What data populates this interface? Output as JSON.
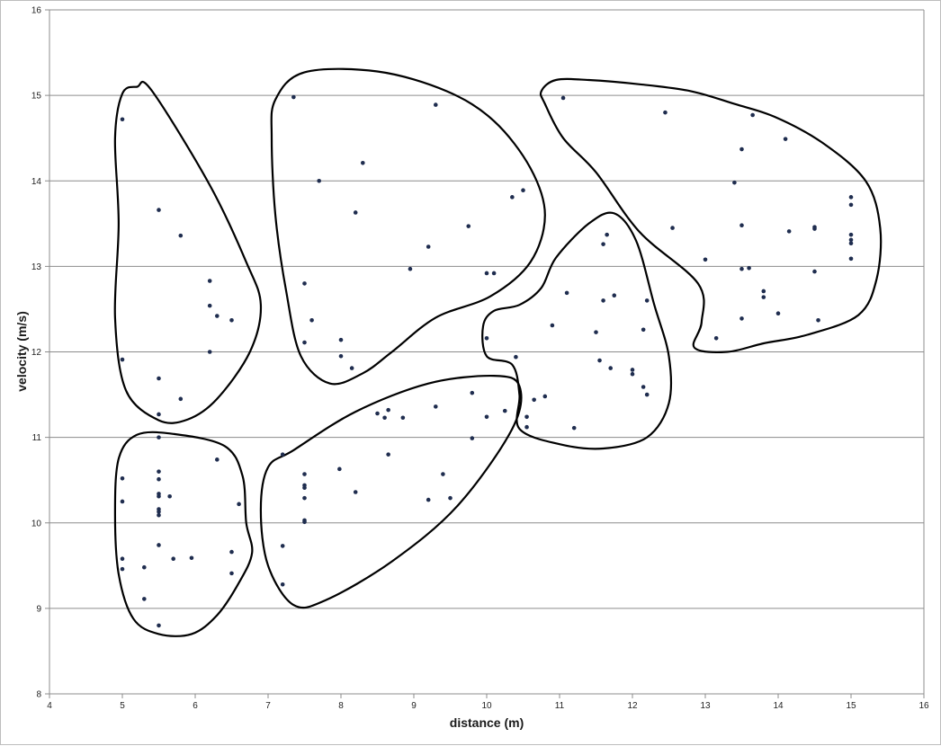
{
  "chart_data": {
    "type": "scatter",
    "title": "",
    "xlabel": "distance (m)",
    "ylabel": "velocity (m/s)",
    "xlim": [
      4,
      16
    ],
    "ylim": [
      8,
      16
    ],
    "xticks": [
      4,
      5,
      6,
      7,
      8,
      9,
      10,
      11,
      12,
      13,
      14,
      15,
      16
    ],
    "yticks": [
      8,
      9,
      10,
      11,
      12,
      13,
      14,
      15,
      16
    ],
    "grid": "horizontal",
    "point_color": "#1f2d4f",
    "series": [
      {
        "points": [
          [
            5.0,
            14.72
          ],
          [
            5.5,
            13.66
          ],
          [
            5.8,
            13.36
          ],
          [
            6.2,
            12.83
          ],
          [
            6.2,
            12.54
          ],
          [
            6.3,
            12.42
          ],
          [
            6.5,
            12.37
          ],
          [
            6.2,
            12.0
          ],
          [
            5.0,
            11.91
          ],
          [
            5.5,
            11.69
          ],
          [
            5.8,
            11.45
          ],
          [
            5.5,
            11.27
          ],
          [
            5.5,
            11.0
          ],
          [
            6.3,
            10.74
          ],
          [
            5.0,
            10.52
          ],
          [
            5.5,
            10.6
          ],
          [
            5.5,
            10.51
          ],
          [
            5.5,
            10.34
          ],
          [
            5.5,
            10.31
          ],
          [
            5.65,
            10.31
          ],
          [
            5.0,
            10.25
          ],
          [
            6.6,
            10.22
          ],
          [
            5.5,
            10.16
          ],
          [
            5.5,
            10.13
          ],
          [
            5.5,
            10.09
          ],
          [
            5.5,
            9.74
          ],
          [
            6.5,
            9.66
          ],
          [
            5.0,
            9.58
          ],
          [
            5.7,
            9.58
          ],
          [
            5.95,
            9.59
          ],
          [
            5.3,
            9.48
          ],
          [
            5.0,
            9.46
          ],
          [
            6.5,
            9.41
          ],
          [
            5.3,
            9.11
          ],
          [
            5.5,
            8.8
          ],
          [
            7.35,
            14.98
          ],
          [
            9.3,
            14.89
          ],
          [
            8.3,
            14.21
          ],
          [
            7.7,
            14.0
          ],
          [
            8.2,
            13.63
          ],
          [
            7.5,
            12.8
          ],
          [
            7.6,
            12.37
          ],
          [
            7.5,
            12.11
          ],
          [
            8.0,
            12.14
          ],
          [
            8.0,
            11.95
          ],
          [
            8.15,
            11.81
          ],
          [
            8.95,
            12.97
          ],
          [
            9.2,
            13.23
          ],
          [
            9.75,
            13.47
          ],
          [
            10.35,
            13.81
          ],
          [
            10.5,
            13.89
          ],
          [
            10.0,
            12.92
          ],
          [
            10.1,
            12.92
          ],
          [
            7.2,
            10.8
          ],
          [
            7.5,
            10.57
          ],
          [
            7.5,
            10.44
          ],
          [
            7.5,
            10.41
          ],
          [
            7.5,
            10.29
          ],
          [
            7.5,
            10.03
          ],
          [
            7.5,
            10.01
          ],
          [
            7.2,
            9.73
          ],
          [
            7.2,
            9.28
          ],
          [
            7.98,
            10.63
          ],
          [
            8.2,
            10.36
          ],
          [
            8.5,
            11.28
          ],
          [
            8.6,
            11.23
          ],
          [
            8.65,
            11.32
          ],
          [
            8.65,
            10.8
          ],
          [
            8.85,
            11.23
          ],
          [
            9.2,
            10.27
          ],
          [
            9.3,
            11.36
          ],
          [
            9.4,
            10.57
          ],
          [
            9.5,
            10.29
          ],
          [
            9.8,
            11.52
          ],
          [
            9.8,
            10.99
          ],
          [
            10.0,
            11.24
          ],
          [
            10.25,
            11.31
          ],
          [
            11.05,
            14.97
          ],
          [
            12.45,
            14.8
          ],
          [
            13.65,
            14.77
          ],
          [
            14.1,
            14.49
          ],
          [
            13.5,
            14.37
          ],
          [
            13.4,
            13.98
          ],
          [
            12.55,
            13.45
          ],
          [
            13.5,
            13.48
          ],
          [
            14.15,
            13.41
          ],
          [
            14.5,
            13.46
          ],
          [
            14.5,
            13.44
          ],
          [
            15.0,
            13.81
          ],
          [
            15.0,
            13.72
          ],
          [
            15.0,
            13.37
          ],
          [
            15.0,
            13.31
          ],
          [
            15.0,
            13.27
          ],
          [
            15.0,
            13.09
          ],
          [
            13.0,
            13.08
          ],
          [
            13.5,
            12.97
          ],
          [
            13.6,
            12.98
          ],
          [
            14.5,
            12.94
          ],
          [
            13.8,
            12.71
          ],
          [
            13.8,
            12.64
          ],
          [
            14.0,
            12.45
          ],
          [
            13.5,
            12.39
          ],
          [
            14.55,
            12.37
          ],
          [
            13.15,
            12.16
          ],
          [
            11.65,
            13.37
          ],
          [
            11.6,
            13.26
          ],
          [
            11.1,
            12.69
          ],
          [
            11.6,
            12.6
          ],
          [
            11.75,
            12.66
          ],
          [
            12.2,
            12.6
          ],
          [
            10.9,
            12.31
          ],
          [
            11.5,
            12.23
          ],
          [
            12.15,
            12.26
          ],
          [
            10.0,
            12.16
          ],
          [
            10.4,
            11.94
          ],
          [
            11.55,
            11.9
          ],
          [
            11.7,
            11.81
          ],
          [
            12.0,
            11.79
          ],
          [
            12.0,
            11.74
          ],
          [
            12.15,
            11.59
          ],
          [
            12.2,
            11.5
          ],
          [
            10.8,
            11.48
          ],
          [
            10.65,
            11.44
          ],
          [
            10.55,
            11.24
          ],
          [
            10.55,
            11.12
          ],
          [
            11.2,
            11.11
          ]
        ]
      }
    ],
    "clusters": [
      [
        [
          5.0,
          15.02
        ],
        [
          5.2,
          15.1
        ],
        [
          5.4,
          15.06
        ],
        [
          6.2,
          13.95
        ],
        [
          6.7,
          13.05
        ],
        [
          6.9,
          12.55
        ],
        [
          6.75,
          12.0
        ],
        [
          6.3,
          11.45
        ],
        [
          5.9,
          11.21
        ],
        [
          5.5,
          11.2
        ],
        [
          5.05,
          11.55
        ],
        [
          4.9,
          12.4
        ],
        [
          4.95,
          13.5
        ],
        [
          4.9,
          14.5
        ]
      ],
      [
        [
          5.2,
          11.03
        ],
        [
          5.7,
          11.04
        ],
        [
          6.4,
          10.9
        ],
        [
          6.65,
          10.55
        ],
        [
          6.7,
          10.0
        ],
        [
          6.78,
          9.65
        ],
        [
          6.6,
          9.3
        ],
        [
          6.3,
          8.92
        ],
        [
          5.95,
          8.7
        ],
        [
          5.5,
          8.7
        ],
        [
          5.15,
          8.88
        ],
        [
          4.95,
          9.4
        ],
        [
          4.9,
          10.1
        ],
        [
          4.95,
          10.75
        ]
      ],
      [
        [
          7.1,
          14.95
        ],
        [
          7.5,
          15.27
        ],
        [
          8.5,
          15.28
        ],
        [
          9.45,
          15.05
        ],
        [
          10.1,
          14.7
        ],
        [
          10.6,
          14.15
        ],
        [
          10.8,
          13.6
        ],
        [
          10.6,
          13.05
        ],
        [
          10.05,
          12.65
        ],
        [
          9.3,
          12.4
        ],
        [
          8.7,
          12.0
        ],
        [
          8.3,
          11.75
        ],
        [
          7.85,
          11.63
        ],
        [
          7.45,
          11.95
        ],
        [
          7.25,
          12.7
        ],
        [
          7.1,
          13.6
        ],
        [
          7.05,
          14.5
        ]
      ],
      [
        [
          7.35,
          10.85
        ],
        [
          8.2,
          11.3
        ],
        [
          9.2,
          11.63
        ],
        [
          10.1,
          11.72
        ],
        [
          10.45,
          11.6
        ],
        [
          10.35,
          11.1
        ],
        [
          9.6,
          10.2
        ],
        [
          8.7,
          9.55
        ],
        [
          7.8,
          9.1
        ],
        [
          7.35,
          9.04
        ],
        [
          7.0,
          9.5
        ],
        [
          6.9,
          10.15
        ],
        [
          7.0,
          10.65
        ]
      ],
      [
        [
          10.95,
          13.1
        ],
        [
          11.4,
          13.5
        ],
        [
          11.75,
          13.62
        ],
        [
          12.05,
          13.3
        ],
        [
          12.3,
          12.55
        ],
        [
          12.5,
          11.95
        ],
        [
          12.5,
          11.4
        ],
        [
          12.2,
          11.0
        ],
        [
          11.6,
          10.87
        ],
        [
          11.0,
          10.92
        ],
        [
          10.45,
          11.1
        ],
        [
          10.45,
          11.5
        ],
        [
          10.35,
          11.85
        ],
        [
          10.0,
          11.95
        ],
        [
          9.95,
          12.3
        ],
        [
          10.1,
          12.48
        ],
        [
          10.45,
          12.55
        ],
        [
          10.75,
          12.75
        ]
      ],
      [
        [
          10.95,
          15.18
        ],
        [
          11.4,
          15.18
        ],
        [
          12.1,
          15.13
        ],
        [
          12.8,
          15.05
        ],
        [
          13.4,
          14.9
        ],
        [
          13.95,
          14.75
        ],
        [
          14.6,
          14.45
        ],
        [
          15.2,
          14.0
        ],
        [
          15.4,
          13.45
        ],
        [
          15.35,
          12.85
        ],
        [
          15.1,
          12.43
        ],
        [
          14.4,
          12.2
        ],
        [
          13.8,
          12.1
        ],
        [
          13.3,
          12.0
        ],
        [
          12.85,
          12.05
        ],
        [
          12.95,
          12.35
        ],
        [
          12.9,
          12.8
        ],
        [
          12.1,
          13.4
        ],
        [
          11.5,
          14.1
        ],
        [
          11.05,
          14.5
        ],
        [
          10.8,
          14.9
        ],
        [
          10.75,
          15.05
        ]
      ]
    ]
  }
}
